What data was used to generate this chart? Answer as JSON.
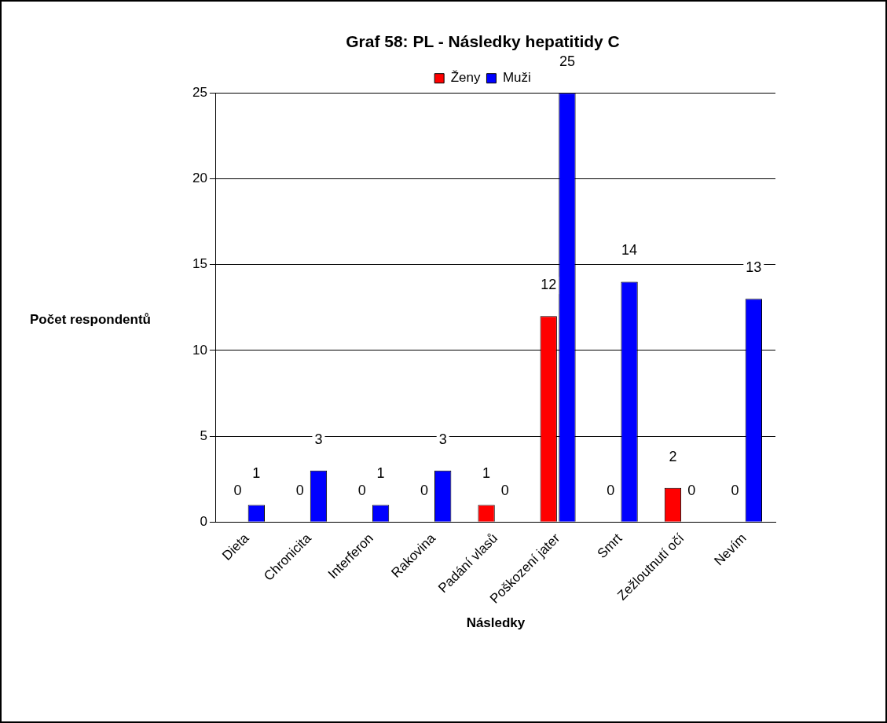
{
  "chart_data": {
    "type": "bar",
    "title": "Graf 58: PL - Následky hepatitidy C",
    "xlabel": "Následky",
    "ylabel": "Počet respondentů",
    "categories": [
      "Dieta",
      "Chronicita",
      "Interferon",
      "Rakovina",
      "Padání vlasů",
      "Poškození jater",
      "Smrt",
      "Zežloutnutí očí",
      "Nevím"
    ],
    "series": [
      {
        "name": "Ženy",
        "color": "#ff0000",
        "values": [
          0,
          0,
          0,
          0,
          1,
          12,
          0,
          2,
          0
        ]
      },
      {
        "name": "Muži",
        "color": "#0000ff",
        "values": [
          1,
          3,
          1,
          3,
          0,
          25,
          14,
          0,
          13
        ]
      }
    ],
    "ylim": [
      0,
      25
    ],
    "yticks": [
      0,
      5,
      10,
      15,
      20,
      25
    ],
    "grid": "y",
    "legend": "top",
    "data_labels": true
  }
}
